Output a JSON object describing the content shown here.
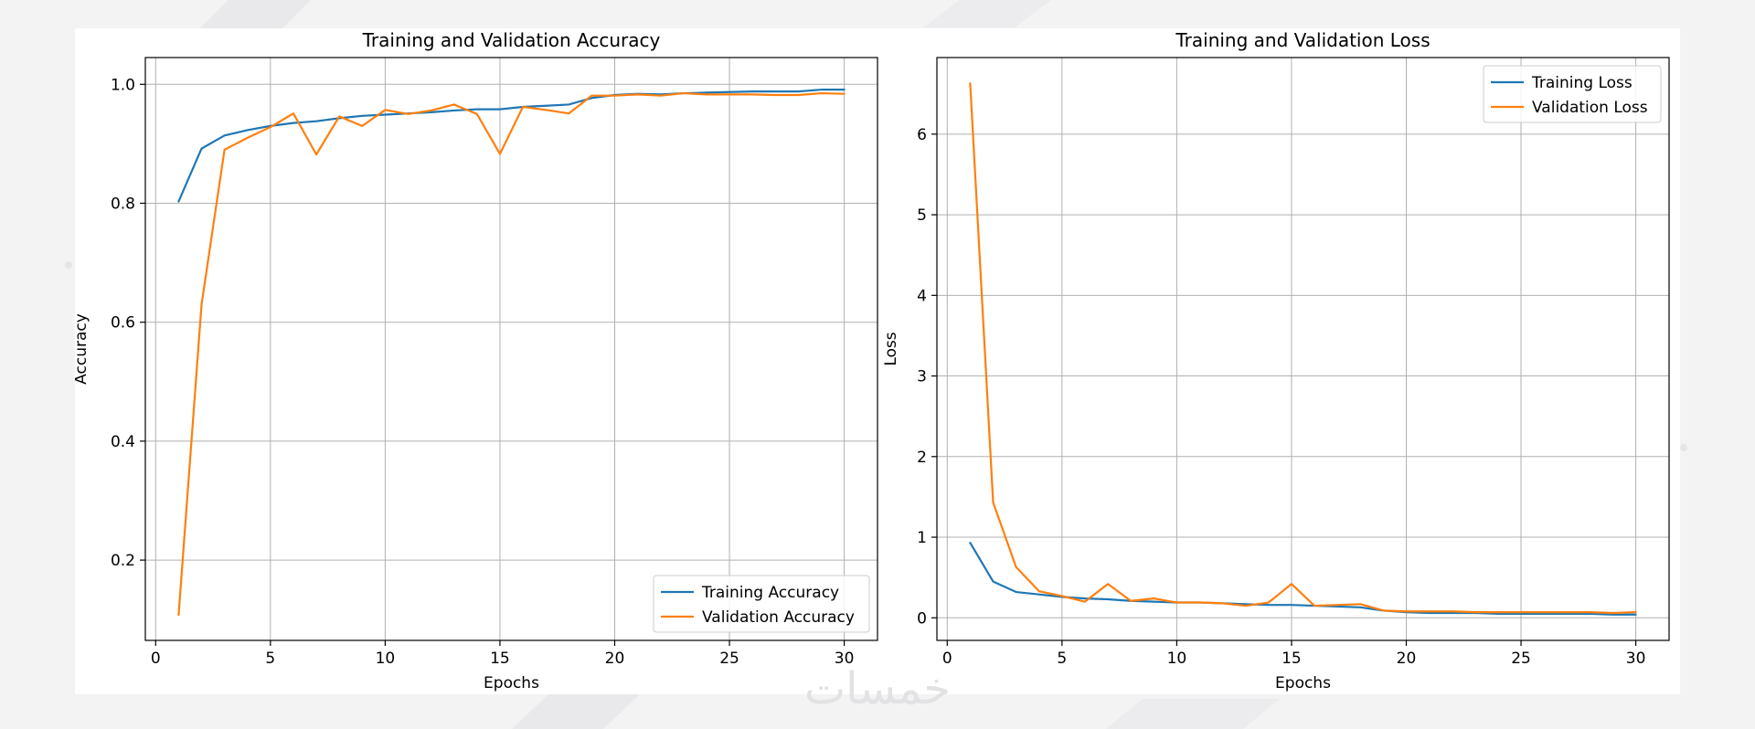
{
  "watermark": "خمسات",
  "colors": {
    "training": "#1f77b4",
    "validation": "#ff7f0e",
    "grid": "#b0b0b0",
    "axis": "#000000"
  },
  "chart_data": [
    {
      "type": "line",
      "title": "Training and Validation Accuracy",
      "xlabel": "Epochs",
      "ylabel": "Accuracy",
      "xlim": [
        -0.45,
        31.45
      ],
      "ylim": [
        0.065,
        1.045
      ],
      "xticks": [
        0,
        5,
        10,
        15,
        20,
        25,
        30
      ],
      "yticks": [
        0.2,
        0.4,
        0.6,
        0.8,
        1.0
      ],
      "ytick_labels": [
        "0.2",
        "0.4",
        "0.6",
        "0.8",
        "1.0"
      ],
      "grid": true,
      "legend": "lower right",
      "x": [
        1,
        2,
        3,
        4,
        5,
        6,
        7,
        8,
        9,
        10,
        11,
        12,
        13,
        14,
        15,
        16,
        17,
        18,
        19,
        20,
        21,
        22,
        23,
        24,
        25,
        26,
        27,
        28,
        29,
        30
      ],
      "series": [
        {
          "name": "Training Accuracy",
          "color": "#1f77b4",
          "values": [
            0.803,
            0.892,
            0.914,
            0.923,
            0.93,
            0.935,
            0.938,
            0.943,
            0.947,
            0.949,
            0.951,
            0.953,
            0.956,
            0.958,
            0.958,
            0.962,
            0.964,
            0.966,
            0.977,
            0.982,
            0.984,
            0.983,
            0.985,
            0.986,
            0.987,
            0.988,
            0.988,
            0.988,
            0.991,
            0.991
          ]
        },
        {
          "name": "Validation Accuracy",
          "color": "#ff7f0e",
          "values": [
            0.108,
            0.63,
            0.89,
            0.91,
            0.928,
            0.951,
            0.882,
            0.946,
            0.93,
            0.957,
            0.95,
            0.956,
            0.966,
            0.95,
            0.883,
            0.962,
            0.957,
            0.951,
            0.981,
            0.981,
            0.983,
            0.981,
            0.985,
            0.983,
            0.983,
            0.983,
            0.982,
            0.982,
            0.985,
            0.984
          ]
        }
      ]
    },
    {
      "type": "line",
      "title": "Training and Validation Loss",
      "xlabel": "Epochs",
      "ylabel": "Loss",
      "xlim": [
        -0.45,
        31.45
      ],
      "ylim": [
        -0.28,
        6.95
      ],
      "xticks": [
        0,
        5,
        10,
        15,
        20,
        25,
        30
      ],
      "yticks": [
        0,
        1,
        2,
        3,
        4,
        5,
        6
      ],
      "ytick_labels": [
        "0",
        "1",
        "2",
        "3",
        "4",
        "5",
        "6"
      ],
      "grid": true,
      "legend": "upper right",
      "x": [
        1,
        2,
        3,
        4,
        5,
        6,
        7,
        8,
        9,
        10,
        11,
        12,
        13,
        14,
        15,
        16,
        17,
        18,
        19,
        20,
        21,
        22,
        23,
        24,
        25,
        26,
        27,
        28,
        29,
        30
      ],
      "series": [
        {
          "name": "Training Loss",
          "color": "#1f77b4",
          "values": [
            0.93,
            0.45,
            0.32,
            0.29,
            0.26,
            0.24,
            0.23,
            0.21,
            0.2,
            0.19,
            0.19,
            0.18,
            0.17,
            0.16,
            0.16,
            0.15,
            0.14,
            0.13,
            0.09,
            0.07,
            0.06,
            0.06,
            0.06,
            0.05,
            0.05,
            0.05,
            0.05,
            0.05,
            0.04,
            0.04
          ]
        },
        {
          "name": "Validation Loss",
          "color": "#ff7f0e",
          "values": [
            6.63,
            1.43,
            0.63,
            0.33,
            0.27,
            0.2,
            0.42,
            0.21,
            0.24,
            0.19,
            0.19,
            0.18,
            0.15,
            0.19,
            0.42,
            0.15,
            0.16,
            0.17,
            0.09,
            0.08,
            0.08,
            0.08,
            0.07,
            0.07,
            0.07,
            0.07,
            0.07,
            0.07,
            0.06,
            0.07
          ]
        }
      ]
    }
  ]
}
